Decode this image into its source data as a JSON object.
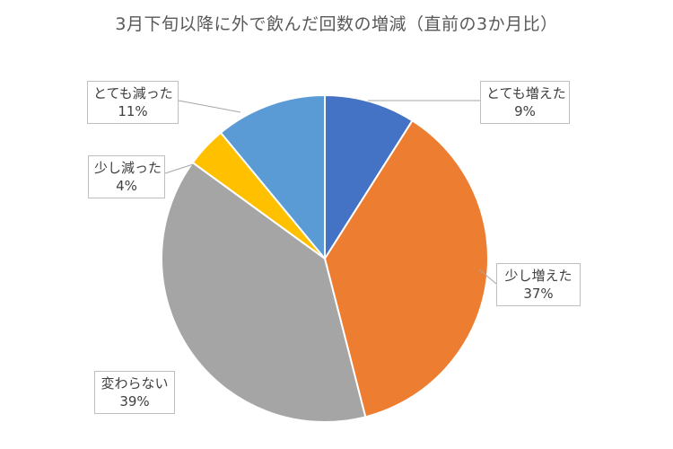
{
  "chart_data": {
    "type": "pie",
    "title": "3月下旬以降に外で飲んだ回数の増減（直前の3か月比）",
    "categories": [
      "とても増えた",
      "少し増えた",
      "変わらない",
      "少し減った",
      "とても減った"
    ],
    "values": [
      9,
      37,
      39,
      4,
      11
    ],
    "value_labels": [
      "9%",
      "37%",
      "39%",
      "4%",
      "11%"
    ],
    "colors": [
      "#4472C4",
      "#ED7D31",
      "#A5A5A5",
      "#FFC000",
      "#5B9BD5"
    ],
    "start_angle_deg": 0,
    "direction": "clockwise",
    "legend": "none"
  }
}
